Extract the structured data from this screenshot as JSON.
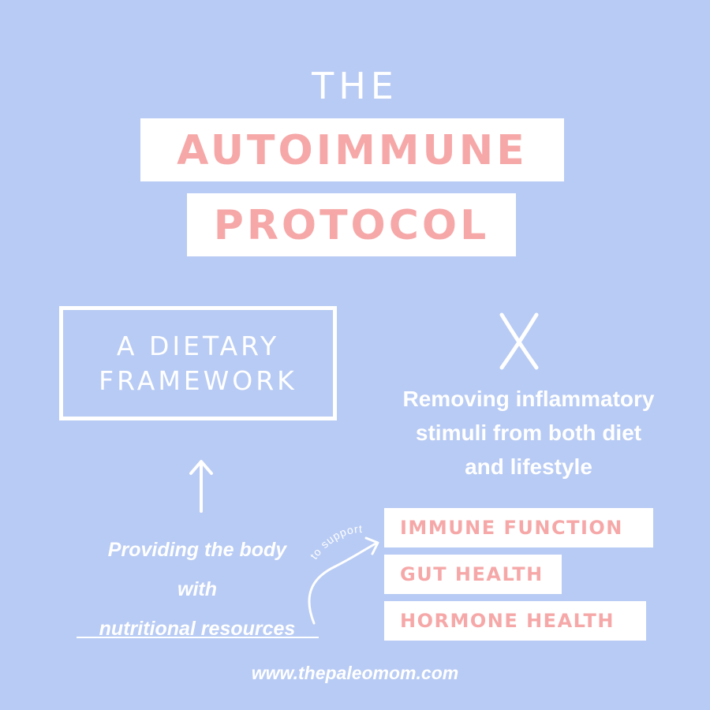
{
  "heading": {
    "pre_title": "THE",
    "title_line1": "AUTOIMMUNE",
    "title_line2": "PROTOCOL"
  },
  "framework_box": {
    "line1": "A DIETARY",
    "line2": "FRAMEWORK"
  },
  "removing": {
    "line1": "Removing inflammatory",
    "line2": "stimuli from both diet",
    "line3": "and lifestyle"
  },
  "providing": {
    "line1": "Providing the body",
    "line2": "with",
    "line3": "nutritional resources"
  },
  "support_label": "to support",
  "supports": [
    "IMMUNE FUNCTION",
    "GUT HEALTH",
    "HORMONE HEALTH"
  ],
  "website": "www.thepaleomom.com",
  "colors": {
    "background": "#b8cbf4",
    "accent_pink": "#f6a8a8",
    "white": "#ffffff"
  },
  "icons": [
    "x-mark-icon",
    "up-arrow-icon",
    "curved-arrow-icon"
  ]
}
